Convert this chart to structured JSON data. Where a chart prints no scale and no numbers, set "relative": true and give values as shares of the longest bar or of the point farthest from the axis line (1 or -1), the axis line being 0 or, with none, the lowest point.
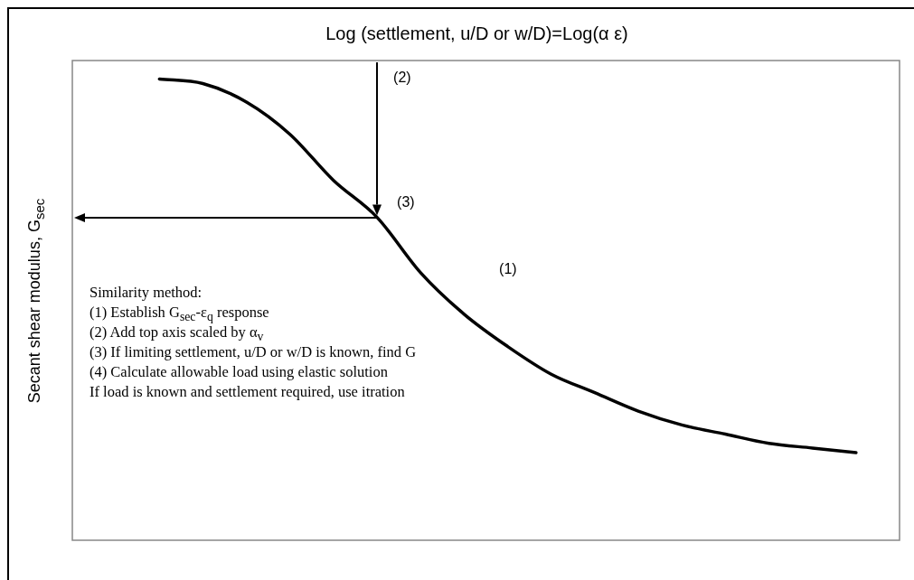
{
  "chart_data": {
    "type": "line",
    "relative": true,
    "x2label": "Log (settlement, u/D or w/D)=Log(α ε)",
    "ylabel": "Secant shear modulus, G$_{sec}$",
    "categories": [
      null,
      null,
      null,
      null,
      null,
      null,
      null,
      null,
      null,
      null,
      null,
      null,
      null,
      null,
      null,
      null,
      null,
      null,
      null,
      null
    ],
    "series": [
      {
        "color": "#000000",
        "values": [
          null,
          null,
          1.0,
          0.99,
          0.95,
          0.88,
          0.78,
          0.7,
          0.58,
          0.49,
          0.42,
          0.36,
          0.32,
          0.28,
          0.25,
          0.23,
          0.21,
          0.2,
          0.19,
          null
        ]
      }
    ],
    "annotations": [
      "(1)",
      "(2)",
      "(3)",
      "Similarity method:",
      "(1) Establish G$_{sec}$-ε$_{q}$ response",
      "(2) Add top axis scaled by α$_{v}$",
      "(3) If limiting settlement, u/D or w/D is known, find G",
      "(4) Calculate allowable load using elastic solution",
      "If load is known and settlement required, use itration"
    ],
    "legend": false,
    "marker": "none",
    "line_style": "solid"
  }
}
